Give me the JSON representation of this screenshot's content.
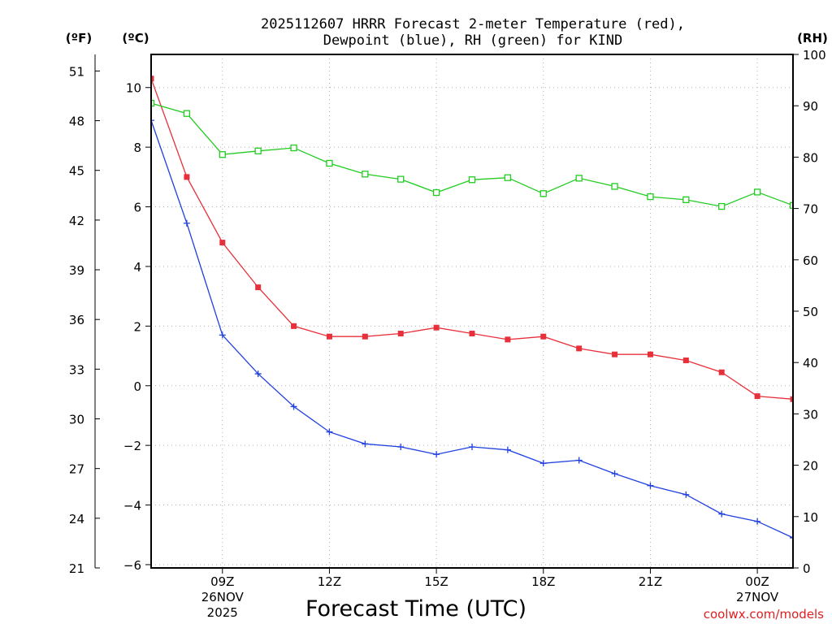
{
  "chart_data": {
    "type": "line",
    "title_lines": [
      "2025112607 HRRR Forecast 2-meter Temperature (red),",
      "Dewpoint (blue), RH (green) for KIND"
    ],
    "xlabel": "Forecast Time (UTC)",
    "credit": "coolwx.com/models",
    "x_hours": [
      7,
      8,
      9,
      10,
      11,
      12,
      13,
      14,
      15,
      16,
      17,
      18,
      19,
      20,
      21,
      22,
      23,
      24,
      25
    ],
    "xlim": [
      7,
      25
    ],
    "x_ticks": [
      {
        "hour": 9,
        "lines": [
          "09Z",
          "26NOV",
          "2025"
        ]
      },
      {
        "hour": 12,
        "lines": [
          "12Z"
        ]
      },
      {
        "hour": 15,
        "lines": [
          "15Z"
        ]
      },
      {
        "hour": 18,
        "lines": [
          "18Z"
        ]
      },
      {
        "hour": 21,
        "lines": [
          "21Z"
        ]
      },
      {
        "hour": 24,
        "lines": [
          "00Z",
          "27NOV"
        ]
      }
    ],
    "axes": {
      "fahrenheit": {
        "unit_label": "(ºF)",
        "range": [
          21,
          52
        ],
        "ticks": [
          "21",
          "24",
          "27",
          "30",
          "33",
          "36",
          "39",
          "42",
          "45",
          "48",
          "51"
        ]
      },
      "celsius": {
        "unit_label": "(ºC)",
        "range": [
          -6.11,
          11.11
        ],
        "ticks": [
          "−6",
          "−4",
          "−2",
          "0",
          "2",
          "4",
          "6",
          "8",
          "10"
        ]
      },
      "rh": {
        "unit_label": "(RH)",
        "range": [
          0,
          100
        ],
        "ticks": [
          "0",
          "10",
          "20",
          "30",
          "40",
          "50",
          "60",
          "70",
          "80",
          "90",
          "100"
        ]
      }
    },
    "series": [
      {
        "name": "2-meter Temperature",
        "axis": "celsius",
        "color": "#e8303a",
        "marker": "filled-square",
        "values": [
          10.3,
          7.0,
          4.8,
          3.3,
          2.0,
          1.65,
          1.65,
          1.75,
          1.95,
          1.75,
          1.55,
          1.65,
          1.25,
          1.05,
          1.05,
          0.85,
          0.45,
          -0.35,
          -0.45
        ]
      },
      {
        "name": "Dewpoint",
        "axis": "celsius",
        "color": "#2040e0",
        "marker": "plus",
        "values": [
          8.9,
          5.45,
          1.7,
          0.4,
          -0.7,
          -1.55,
          -1.95,
          -2.05,
          -2.3,
          -2.05,
          -2.15,
          -2.6,
          -2.5,
          -2.95,
          -3.35,
          -3.65,
          -4.3,
          -4.55,
          -5.1
        ]
      },
      {
        "name": "RH",
        "axis": "rh",
        "color": "#22cc22",
        "marker": "open-square",
        "values": [
          90.5,
          88.5,
          80.5,
          81.2,
          81.8,
          78.8,
          76.7,
          75.7,
          73.1,
          75.6,
          76.0,
          72.9,
          75.9,
          74.3,
          72.3,
          71.7,
          70.4,
          73.2,
          70.6
        ]
      }
    ]
  }
}
